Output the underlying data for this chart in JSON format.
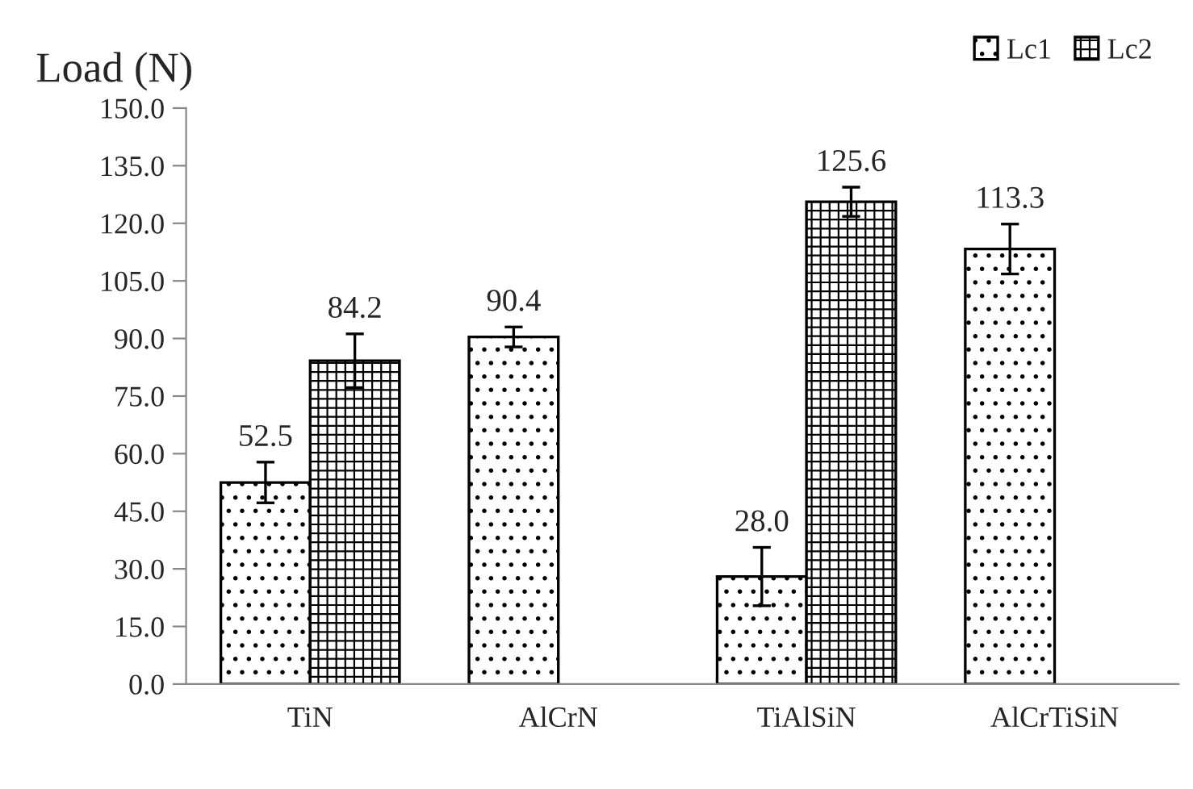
{
  "chart_data": {
    "type": "bar",
    "ylabel": "Load (N)",
    "categories": [
      "TiN",
      "AlCrN",
      "TiAlSiN",
      "AlCrTiSiN"
    ],
    "series": [
      {
        "name": "Lc1",
        "color": "#000000",
        "values": [
          52.5,
          90.4,
          28.0,
          113.3
        ],
        "errors": [
          5.3,
          2.6,
          7.6,
          6.5
        ],
        "value_labels": [
          "52.5",
          "90.4",
          "28.0",
          "113.3"
        ]
      },
      {
        "name": "Lc2",
        "color": "#000000",
        "values": [
          84.2,
          null,
          125.6,
          null
        ],
        "errors": [
          7.0,
          null,
          3.8,
          null
        ],
        "value_labels": [
          "84.2",
          null,
          "125.6",
          null
        ]
      }
    ],
    "ylim": [
      0,
      150
    ],
    "yticks": [
      {
        "value": 0,
        "label": "0.0"
      },
      {
        "value": 15,
        "label": "15.0"
      },
      {
        "value": 30,
        "label": "30.0"
      },
      {
        "value": 45,
        "label": "45.0"
      },
      {
        "value": 60,
        "label": "60.0"
      },
      {
        "value": 75,
        "label": "75.0"
      },
      {
        "value": 90,
        "label": "90.0"
      },
      {
        "value": 105,
        "label": "105.0"
      },
      {
        "value": 120,
        "label": "120.0"
      },
      {
        "value": 135,
        "label": "135.0"
      },
      {
        "value": 150,
        "label": "150.0"
      }
    ],
    "grid": false,
    "legend": "top right"
  }
}
